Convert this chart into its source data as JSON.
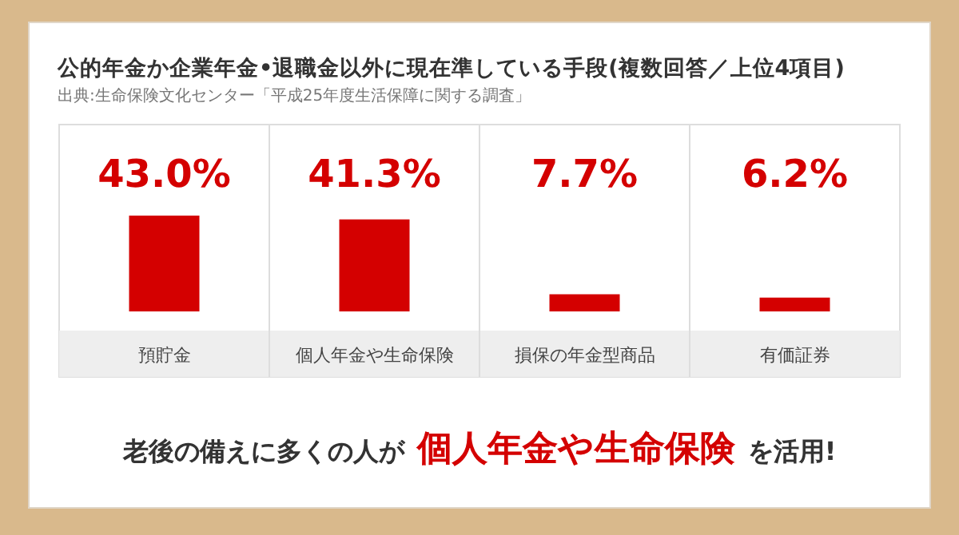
{
  "chart_data": {
    "type": "bar",
    "title": "公的年金か企業年金•退職金以外に現在準している手段(複数回答／上位4項目)",
    "subtitle": "出典:生命保険文化センター「平成25年度生活保障に関する調査」",
    "categories": [
      "預貯金",
      "個人年金や生命保険",
      "損保の年金型商品",
      "有価証券"
    ],
    "values": [
      43.0,
      41.3,
      7.7,
      6.2
    ],
    "value_labels": [
      "43.0%",
      "41.3%",
      "7.7%",
      "6.2%"
    ],
    "color": "#d40000",
    "annotations": [
      "老後の備えに多くの人が",
      "個人年金や生命保険",
      "を活用!"
    ]
  }
}
